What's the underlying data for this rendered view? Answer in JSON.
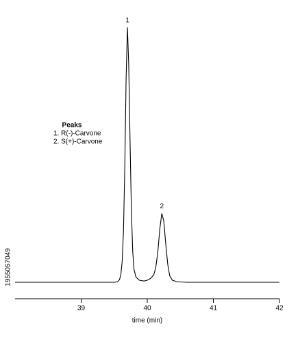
{
  "chart_data": {
    "type": "line",
    "x_label": "time (min)",
    "legend_title": "Peaks",
    "legend_items": [
      "1. R(-)-Carvone",
      "2. S(+)-Carvone"
    ],
    "peak_labels": [
      "1",
      "2"
    ],
    "stock_id": "1955057049",
    "color": "#000000",
    "xlim": [
      38,
      42
    ],
    "xticks": [
      39,
      40,
      41,
      42
    ],
    "ylim": [
      0,
      100
    ],
    "series": [
      {
        "name": null,
        "color": "#000000",
        "x": [
          38.0,
          39.5,
          39.55,
          39.58,
          39.6,
          39.62,
          39.64,
          39.66,
          39.68,
          39.7,
          39.72,
          39.74,
          39.76,
          39.78,
          39.8,
          39.83,
          39.88,
          39.95,
          40.0,
          40.05,
          40.1,
          40.13,
          40.16,
          40.19,
          40.22,
          40.25,
          40.28,
          40.31,
          40.34,
          40.38,
          40.45,
          40.6,
          42.0
        ],
        "values": [
          0,
          0,
          0.2,
          1,
          3,
          8,
          20,
          45,
          80,
          100,
          85,
          55,
          28,
          12,
          5,
          2,
          0.8,
          0.5,
          0.8,
          1.5,
          3,
          6,
          12,
          21,
          27,
          24,
          15,
          7,
          2.5,
          0.8,
          0.2,
          0,
          0
        ]
      }
    ]
  }
}
